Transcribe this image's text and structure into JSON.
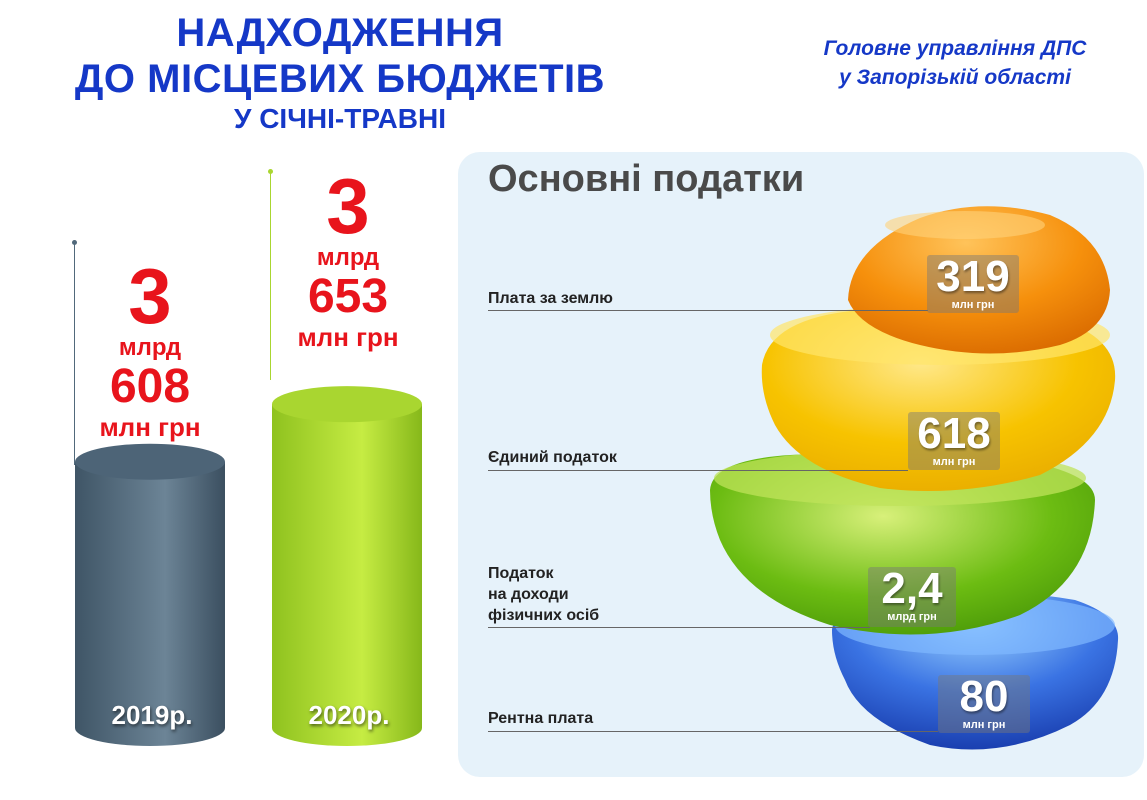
{
  "header": {
    "title_line1": "НАДХОДЖЕННЯ",
    "title_line2": "ДО МІСЦЕВИХ БЮДЖЕТІВ",
    "subtitle": "У СІЧНІ-ТРАВНІ",
    "org_line1": "Головне управління ДПС",
    "org_line2": "у Запорізькій області"
  },
  "chart_data": [
    {
      "type": "bar",
      "categories": [
        "2019р.",
        "2020р."
      ],
      "values": [
        3608,
        3653
      ],
      "unit": "млн грн",
      "labels": [
        {
          "n1": "3",
          "u1": "млрд",
          "n2": "608",
          "u2": "млн грн"
        },
        {
          "n1": "3",
          "u1": "млрд",
          "n2": "653",
          "u2": "млн грн"
        }
      ],
      "colors": [
        "#4d6477",
        "#a9d630"
      ]
    },
    {
      "type": "bar",
      "title": "Основні податки",
      "items": [
        {
          "label": "Плата за землю",
          "value": "319",
          "unit": "млн грн",
          "color": "#f6900c"
        },
        {
          "label": "Єдиний податок",
          "value": "618",
          "unit": "млн грн",
          "color": "#f7c300"
        },
        {
          "label": "Податок\nна доходи\nфізичних осіб",
          "value": "2,4",
          "unit": "млрд грн",
          "color": "#6cbc12"
        },
        {
          "label": "Рентна плата",
          "value": "80",
          "unit": "млн грн",
          "color": "#3a73e3"
        }
      ]
    }
  ]
}
